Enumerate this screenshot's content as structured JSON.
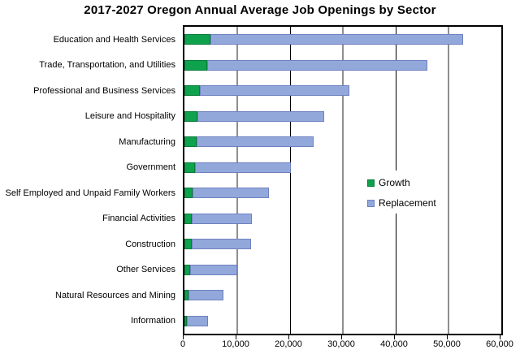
{
  "chart_data": {
    "type": "bar",
    "orientation": "horizontal",
    "stacked": true,
    "title": "2017-2027 Oregon Annual Average Job Openings by Sector",
    "categories": [
      "Education and Health Services",
      "Trade, Transportation, and Utilities",
      "Professional and Business Services",
      "Leisure and Hospitality",
      "Manufacturing",
      "Government",
      "Self Employed and Unpaid Family Workers",
      "Financial Activities",
      "Construction",
      "Other Services",
      "Natural Resources and Mining",
      "Information"
    ],
    "series": [
      {
        "name": "Growth",
        "color": "#0EA24D",
        "border_color": "#0A7A3A",
        "values": [
          4900,
          4300,
          2900,
          2500,
          2300,
          2000,
          1500,
          1400,
          1400,
          1100,
          800,
          500
        ]
      },
      {
        "name": "Replacement",
        "color": "#92A8DB",
        "border_color": "#7080C0",
        "values": [
          47900,
          41700,
          28400,
          24000,
          22200,
          18100,
          14500,
          11400,
          11200,
          8900,
          6600,
          4000
        ]
      }
    ],
    "totals": [
      52800,
      46000,
      31300,
      26500,
      24500,
      20100,
      16000,
      12800,
      12600,
      10000,
      7400,
      4500
    ],
    "xlim": [
      0,
      60000
    ],
    "x_ticks": [
      {
        "value": 0,
        "label": "0",
        "grid": "none"
      },
      {
        "value": 10000,
        "label": "10,000",
        "grid": "minor"
      },
      {
        "value": 20000,
        "label": "20,000",
        "grid": "major"
      },
      {
        "value": 30000,
        "label": "30,000",
        "grid": "minor"
      },
      {
        "value": 40000,
        "label": "40,000",
        "grid": "major"
      },
      {
        "value": 50000,
        "label": "50,000",
        "grid": "minor"
      },
      {
        "value": 60000,
        "label": "60,000",
        "grid": "none"
      }
    ],
    "legend": {
      "position": "inside-right",
      "entries": [
        "Growth",
        "Replacement"
      ]
    },
    "colors": {
      "grid_minor": "#8F8F8F",
      "grid_major": "#000000",
      "plot_border": "#000000",
      "background": "#FFFFFF",
      "text": "#000000"
    }
  }
}
